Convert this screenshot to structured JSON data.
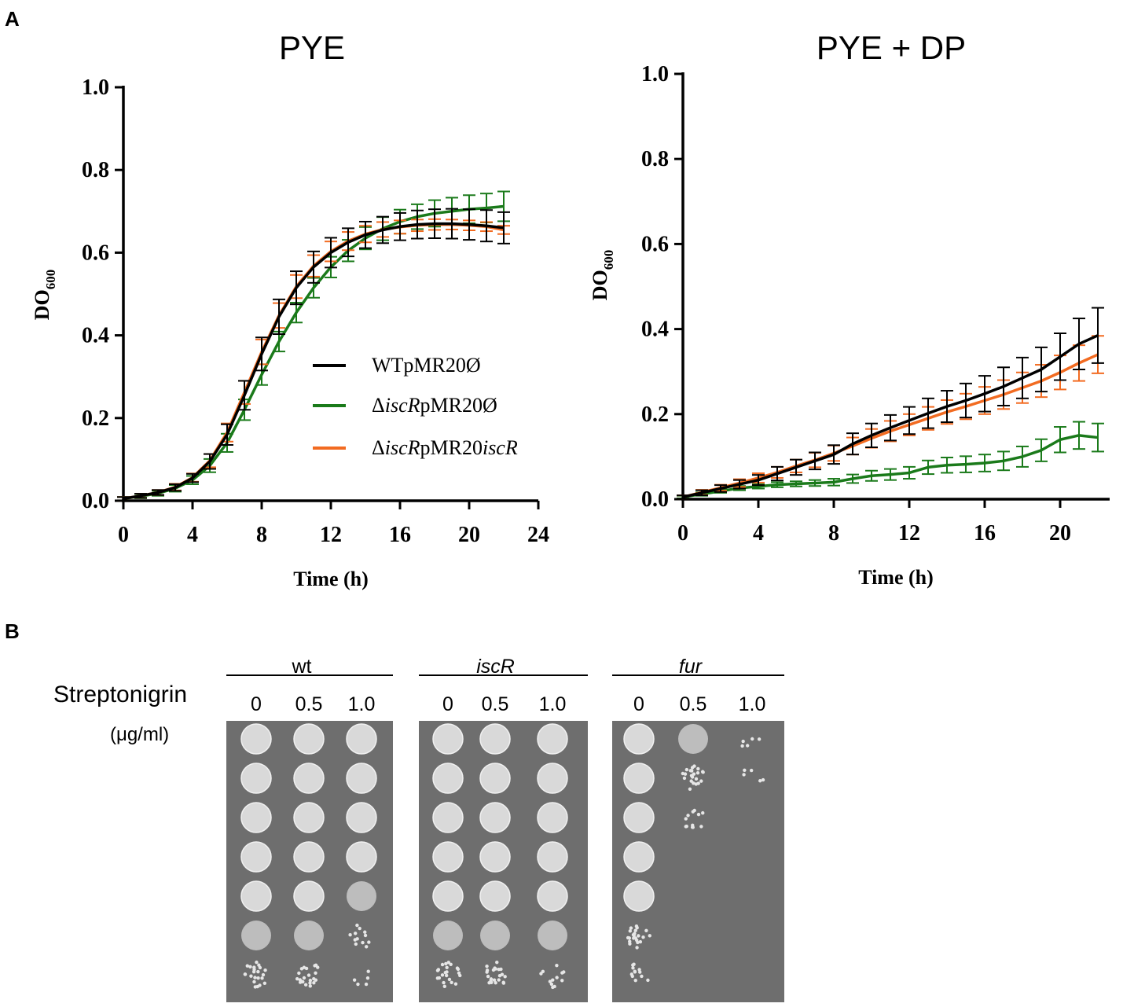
{
  "panels": {
    "a_label": "A",
    "b_label": "B"
  },
  "chart_data": [
    {
      "type": "line",
      "title": "PYE",
      "xlabel": "Time (h)",
      "ylabel": "DO",
      "ylabel_sub": "600",
      "xlim": [
        0,
        24
      ],
      "ylim": [
        0,
        1.0
      ],
      "xticks": [
        0,
        4,
        8,
        12,
        16,
        20,
        24
      ],
      "yticks": [
        0.0,
        0.2,
        0.4,
        0.6,
        0.8,
        1.0
      ],
      "xtick_labels": [
        "0",
        "4",
        "8",
        "12",
        "16",
        "20",
        "24"
      ],
      "ytick_labels": [
        "0.0",
        "0.2",
        "0.4",
        "0.6",
        "0.8",
        "1.0"
      ],
      "legend": [
        {
          "pre": "WTpMR20Ø",
          "ital": "",
          "post": "",
          "ital2": "",
          "color": "#000000"
        },
        {
          "pre": "Δ",
          "ital": "iscR",
          "post": "pMR20Ø",
          "ital2": "",
          "color": "#1a7a1a"
        },
        {
          "pre": "Δ",
          "ital": "iscR",
          "post": "pMR20",
          "ital2": "iscR",
          "color": "#f26b21"
        }
      ],
      "legend_position": "center-right",
      "series": [
        {
          "name": "WTpMR20Ø",
          "color": "#000000",
          "x": [
            0,
            1,
            2,
            3,
            4,
            5,
            6,
            7,
            8,
            9,
            10,
            11,
            12,
            13,
            14,
            15,
            16,
            17,
            18,
            19,
            20,
            21,
            22
          ],
          "y": [
            0.005,
            0.012,
            0.02,
            0.032,
            0.055,
            0.095,
            0.16,
            0.255,
            0.355,
            0.445,
            0.515,
            0.565,
            0.6,
            0.625,
            0.643,
            0.655,
            0.663,
            0.668,
            0.67,
            0.67,
            0.668,
            0.665,
            0.66
          ],
          "err": [
            0.004,
            0.005,
            0.006,
            0.008,
            0.01,
            0.018,
            0.025,
            0.035,
            0.04,
            0.042,
            0.04,
            0.038,
            0.036,
            0.034,
            0.032,
            0.032,
            0.033,
            0.034,
            0.035,
            0.036,
            0.037,
            0.038,
            0.038
          ]
        },
        {
          "name": "ΔiscRpMR20Ø",
          "color": "#1a7a1a",
          "x": [
            0,
            1,
            2,
            3,
            4,
            5,
            6,
            7,
            8,
            9,
            10,
            11,
            12,
            13,
            14,
            15,
            16,
            17,
            18,
            19,
            20,
            21,
            22
          ],
          "y": [
            0.005,
            0.011,
            0.018,
            0.03,
            0.05,
            0.085,
            0.14,
            0.22,
            0.305,
            0.385,
            0.455,
            0.515,
            0.565,
            0.605,
            0.635,
            0.658,
            0.675,
            0.687,
            0.695,
            0.7,
            0.705,
            0.708,
            0.712
          ],
          "err": [
            0.004,
            0.005,
            0.006,
            0.008,
            0.01,
            0.016,
            0.022,
            0.025,
            0.025,
            0.024,
            0.024,
            0.024,
            0.025,
            0.026,
            0.027,
            0.028,
            0.029,
            0.03,
            0.032,
            0.033,
            0.034,
            0.035,
            0.036
          ]
        },
        {
          "name": "ΔiscRpMR20iscR",
          "color": "#f26b21",
          "x": [
            0,
            1,
            2,
            3,
            4,
            5,
            6,
            7,
            8,
            9,
            10,
            11,
            12,
            13,
            14,
            15,
            16,
            17,
            18,
            19,
            20,
            21,
            22
          ],
          "y": [
            0.005,
            0.012,
            0.02,
            0.033,
            0.056,
            0.097,
            0.165,
            0.262,
            0.36,
            0.448,
            0.518,
            0.568,
            0.603,
            0.628,
            0.645,
            0.656,
            0.662,
            0.666,
            0.668,
            0.668,
            0.666,
            0.663,
            0.655
          ],
          "err": [
            0.004,
            0.005,
            0.006,
            0.008,
            0.01,
            0.016,
            0.022,
            0.028,
            0.03,
            0.03,
            0.028,
            0.026,
            0.024,
            0.022,
            0.02,
            0.018,
            0.016,
            0.014,
            0.013,
            0.012,
            0.012,
            0.011,
            0.01
          ]
        }
      ]
    },
    {
      "type": "line",
      "title": "PYE + DP",
      "xlabel": "Time (h)",
      "ylabel": "DO",
      "ylabel_sub": "600",
      "xlim": [
        0,
        22
      ],
      "ylim": [
        0,
        1.0
      ],
      "xticks": [
        0,
        4,
        8,
        12,
        16,
        20
      ],
      "yticks": [
        0.0,
        0.2,
        0.4,
        0.6,
        0.8,
        1.0
      ],
      "xtick_labels": [
        "0",
        "4",
        "8",
        "12",
        "16",
        "20"
      ],
      "ytick_labels": [
        "0.0",
        "0.2",
        "0.4",
        "0.6",
        "0.8",
        "1.0"
      ],
      "series": [
        {
          "name": "WTpMR20Ø",
          "color": "#000000",
          "x": [
            0,
            1,
            2,
            3,
            4,
            5,
            6,
            7,
            8,
            9,
            10,
            11,
            12,
            13,
            14,
            15,
            16,
            17,
            18,
            19,
            20,
            21,
            22
          ],
          "y": [
            0.005,
            0.015,
            0.025,
            0.035,
            0.045,
            0.06,
            0.075,
            0.09,
            0.105,
            0.13,
            0.15,
            0.168,
            0.185,
            0.202,
            0.218,
            0.232,
            0.248,
            0.265,
            0.285,
            0.305,
            0.335,
            0.365,
            0.385
          ],
          "err": [
            0.004,
            0.006,
            0.008,
            0.01,
            0.012,
            0.016,
            0.018,
            0.02,
            0.022,
            0.025,
            0.028,
            0.03,
            0.032,
            0.035,
            0.037,
            0.04,
            0.042,
            0.045,
            0.048,
            0.052,
            0.055,
            0.06,
            0.065
          ]
        },
        {
          "name": "ΔiscRpMR20Ø",
          "color": "#1a7a1a",
          "x": [
            0,
            1,
            2,
            3,
            4,
            5,
            6,
            7,
            8,
            9,
            10,
            11,
            12,
            13,
            14,
            15,
            16,
            17,
            18,
            19,
            20,
            21,
            22
          ],
          "y": [
            0.005,
            0.012,
            0.019,
            0.026,
            0.03,
            0.034,
            0.036,
            0.038,
            0.04,
            0.048,
            0.055,
            0.058,
            0.062,
            0.075,
            0.08,
            0.082,
            0.085,
            0.09,
            0.1,
            0.115,
            0.14,
            0.15,
            0.145
          ],
          "err": [
            0.003,
            0.004,
            0.004,
            0.005,
            0.005,
            0.006,
            0.006,
            0.007,
            0.008,
            0.01,
            0.012,
            0.013,
            0.014,
            0.016,
            0.018,
            0.019,
            0.02,
            0.022,
            0.024,
            0.026,
            0.03,
            0.032,
            0.033
          ]
        },
        {
          "name": "ΔiscRpMR20iscR",
          "color": "#f26b21",
          "x": [
            0,
            1,
            2,
            3,
            4,
            5,
            6,
            7,
            8,
            9,
            10,
            11,
            12,
            13,
            14,
            15,
            16,
            17,
            18,
            19,
            20,
            21,
            22
          ],
          "y": [
            0.005,
            0.016,
            0.027,
            0.038,
            0.05,
            0.063,
            0.078,
            0.092,
            0.108,
            0.125,
            0.143,
            0.16,
            0.175,
            0.19,
            0.205,
            0.218,
            0.232,
            0.246,
            0.262,
            0.278,
            0.298,
            0.32,
            0.34
          ],
          "err": [
            0.004,
            0.006,
            0.007,
            0.009,
            0.011,
            0.013,
            0.015,
            0.017,
            0.018,
            0.02,
            0.022,
            0.024,
            0.025,
            0.027,
            0.028,
            0.03,
            0.032,
            0.034,
            0.036,
            0.038,
            0.04,
            0.042,
            0.044
          ]
        }
      ]
    }
  ],
  "plate": {
    "compound_label": "Streptonigrin",
    "unit_label": "(μg/ml)",
    "strains": [
      {
        "name": "wt",
        "italic": false
      },
      {
        "name": "iscR",
        "italic": true
      },
      {
        "name": "fur",
        "italic": true
      }
    ],
    "concentrations": [
      "0",
      "0.5",
      "1.0"
    ],
    "dilution_rows": 7,
    "growth": [
      [
        [
          1,
          1,
          1,
          1,
          1,
          2,
          3
        ],
        [
          1,
          1,
          1,
          1,
          1,
          2,
          3
        ],
        [
          1,
          1,
          1,
          1,
          2,
          4,
          5
        ]
      ],
      [
        [
          1,
          1,
          1,
          1,
          1,
          2,
          3
        ],
        [
          1,
          1,
          1,
          1,
          1,
          2,
          3
        ],
        [
          1,
          1,
          1,
          1,
          1,
          2,
          4
        ]
      ],
      [
        [
          1,
          1,
          1,
          1,
          1,
          3,
          4
        ],
        [
          2,
          3,
          4,
          6,
          6,
          6,
          6
        ],
        [
          5,
          5,
          6,
          6,
          6,
          6,
          6
        ]
      ]
    ],
    "colors": {
      "agar": "#6e6e6e",
      "colony": "#e6e6e6",
      "spot": "#d9d9d9"
    }
  }
}
